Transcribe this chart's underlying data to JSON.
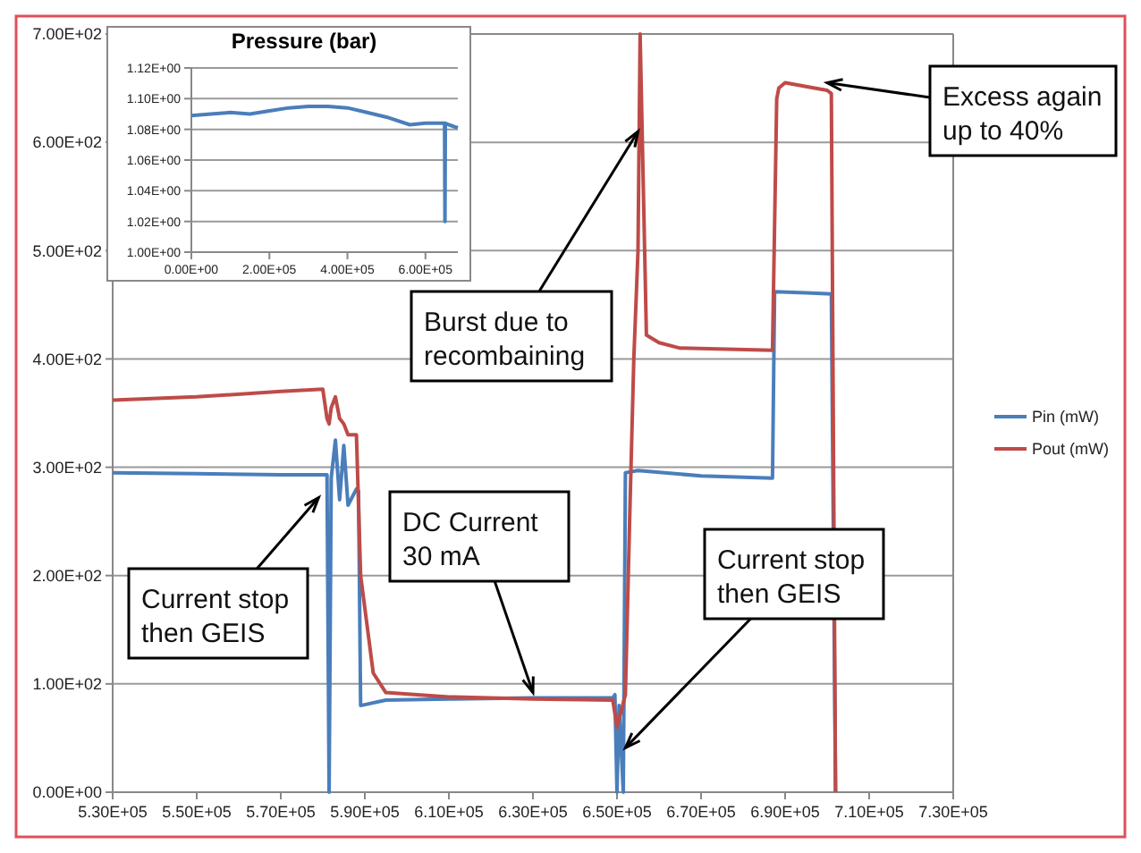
{
  "chart_data": [
    {
      "type": "line",
      "x": [
        530000,
        550000,
        570000,
        580000,
        581000,
        581500,
        582000,
        583000,
        584000,
        585000,
        586000,
        588000,
        589000,
        592000,
        595000,
        610000,
        630000,
        649000,
        650000,
        651000,
        652000,
        653000,
        654000,
        655000,
        655500,
        657000,
        660000,
        665000,
        687000,
        688000,
        688500,
        690000,
        697000,
        700000,
        701000,
        702000
      ],
      "series": [
        {
          "name": "Pin (mW)",
          "color": "#4a7ebb",
          "x": [
            530000,
            550000,
            570000,
            581000,
            581500,
            582000,
            583000,
            584000,
            585000,
            586000,
            588000,
            588500,
            589000,
            595000,
            610000,
            630000,
            649000,
            649500,
            650000,
            650500,
            651500,
            652000,
            655000,
            670000,
            687000,
            687500,
            695000,
            701000,
            702000
          ],
          "values": [
            295,
            294,
            293,
            293,
            0,
            290,
            325,
            270,
            320,
            265,
            280,
            278,
            80,
            85,
            86,
            87,
            87,
            90,
            0,
            80,
            0,
            295,
            297,
            292,
            290,
            462,
            461,
            460,
            0
          ]
        },
        {
          "name": "Pout (mW)",
          "color": "#be4b48",
          "values": [
            362,
            365,
            370,
            372,
            345,
            340,
            355,
            365,
            345,
            340,
            330,
            330,
            200,
            110,
            92,
            88,
            86,
            85,
            60,
            75,
            90,
            250,
            400,
            500,
            700,
            422,
            415,
            410,
            408,
            640,
            650,
            655,
            650,
            648,
            645,
            0
          ]
        }
      ],
      "xlim": [
        530000,
        730000
      ],
      "ylim": [
        0,
        700
      ],
      "xticks": [
        {
          "value": 530000,
          "label": "5.30E+05"
        },
        {
          "value": 550000,
          "label": "5.50E+05"
        },
        {
          "value": 570000,
          "label": "5.70E+05"
        },
        {
          "value": 590000,
          "label": "5.90E+05"
        },
        {
          "value": 610000,
          "label": "6.10E+05"
        },
        {
          "value": 630000,
          "label": "6.30E+05"
        },
        {
          "value": 650000,
          "label": "6.50E+05"
        },
        {
          "value": 670000,
          "label": "6.70E+05"
        },
        {
          "value": 690000,
          "label": "6.90E+05"
        },
        {
          "value": 710000,
          "label": "7.10E+05"
        },
        {
          "value": 730000,
          "label": "7.30E+05"
        }
      ],
      "yticks": [
        {
          "value": 0,
          "label": "0.00E+00"
        },
        {
          "value": 100,
          "label": "1.00E+02"
        },
        {
          "value": 200,
          "label": "2.00E+02"
        },
        {
          "value": 300,
          "label": "3.00E+02"
        },
        {
          "value": 400,
          "label": "4.00E+02"
        },
        {
          "value": 500,
          "label": "5.00E+02"
        },
        {
          "value": 600,
          "label": "6.00E+02"
        },
        {
          "value": 700,
          "label": "7.00E+02"
        }
      ],
      "grid": "y",
      "legend": "right",
      "marker": "none",
      "line_style": "solid",
      "annotations": [
        {
          "text": "Burst due to recombaining",
          "x": 655000,
          "y": 610
        },
        {
          "text": "Excess again up to 40%",
          "x": 700000,
          "y": 655
        },
        {
          "text": "Current stop then GEIS",
          "x": 579000,
          "y": 272
        },
        {
          "text": "DC Current 30 mA",
          "x": 630000,
          "y": 92
        },
        {
          "text": "Current stop then GEIS",
          "x": 652000,
          "y": 41
        }
      ]
    },
    {
      "type": "line",
      "title": "Pressure (bar)",
      "series": [
        {
          "color": "#4a7ebb",
          "x": [
            0,
            50000,
            100000,
            150000,
            200000,
            250000,
            300000,
            350000,
            400000,
            450000,
            500000,
            560000,
            600000,
            640000,
            649000,
            650000,
            651000,
            660000,
            683000
          ],
          "values": [
            1.089,
            1.09,
            1.091,
            1.09,
            1.092,
            1.094,
            1.095,
            1.095,
            1.094,
            1.091,
            1.088,
            1.083,
            1.084,
            1.084,
            1.084,
            1.02,
            1.084,
            1.083,
            1.081
          ]
        }
      ],
      "xlim": [
        0,
        683000
      ],
      "ylim": [
        1.0,
        1.12
      ],
      "xticks": [
        {
          "value": 0,
          "label": "0.00E+00"
        },
        {
          "value": 200000,
          "label": "2.00E+05"
        },
        {
          "value": 400000,
          "label": "4.00E+05"
        },
        {
          "value": 600000,
          "label": "6.00E+05"
        }
      ],
      "yticks": [
        {
          "value": 1.0,
          "label": "1.00E+00"
        },
        {
          "value": 1.02,
          "label": "1.02E+00"
        },
        {
          "value": 1.04,
          "label": "1.04E+00"
        },
        {
          "value": 1.06,
          "label": "1.06E+00"
        },
        {
          "value": 1.08,
          "label": "1.08E+00"
        },
        {
          "value": 1.1,
          "label": "1.10E+00"
        },
        {
          "value": 1.12,
          "label": "1.12E+00"
        }
      ],
      "grid": "y",
      "marker": "none",
      "line_style": "solid"
    }
  ]
}
